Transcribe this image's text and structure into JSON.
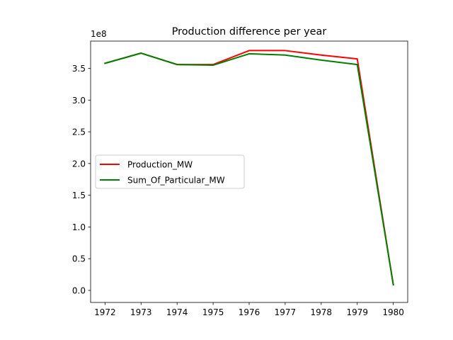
{
  "chart_data": {
    "type": "line",
    "title": "Production difference per year",
    "xlabel": "",
    "ylabel": "",
    "y_offset_label": "1e8",
    "x": [
      1972,
      1973,
      1974,
      1975,
      1976,
      1977,
      1978,
      1979,
      1980
    ],
    "x_tick_labels": [
      "1972",
      "1973",
      "1974",
      "1975",
      "1976",
      "1977",
      "1978",
      "1979",
      "1980"
    ],
    "y_ticks": [
      0.0,
      0.5,
      1.0,
      1.5,
      2.0,
      2.5,
      3.0,
      3.5
    ],
    "y_tick_labels": [
      "0.0",
      "0.5",
      "1.0",
      "1.5",
      "2.0",
      "2.5",
      "3.0",
      "3.5"
    ],
    "xlim": [
      1971.6,
      1980.4
    ],
    "ylim": [
      -0.19,
      3.93
    ],
    "y_scale": 100000000,
    "grid": false,
    "legend_position": "center-left",
    "series": [
      {
        "name": "Production_MW",
        "color": "#ff0000",
        "values": [
          3.58,
          3.74,
          3.56,
          3.56,
          3.78,
          3.78,
          3.71,
          3.65,
          0.09
        ]
      },
      {
        "name": "Sum_Of_Particular_MW",
        "color": "#008000",
        "values": [
          3.58,
          3.74,
          3.56,
          3.55,
          3.73,
          3.71,
          3.63,
          3.56,
          0.09
        ]
      }
    ]
  }
}
